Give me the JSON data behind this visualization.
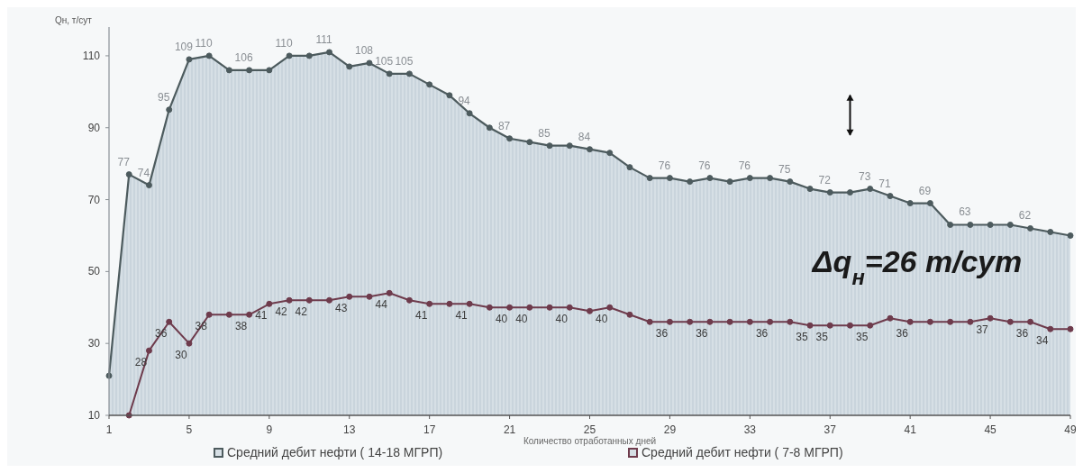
{
  "chart_data": {
    "type": "area",
    "ylabel": "Qн, т/сут",
    "xlabel": "Количество отработанных дней",
    "x": [
      1,
      2,
      3,
      4,
      5,
      6,
      7,
      8,
      9,
      10,
      11,
      12,
      13,
      14,
      15,
      16,
      17,
      18,
      19,
      20,
      21,
      22,
      23,
      24,
      25,
      26,
      27,
      28,
      29,
      30,
      31,
      32,
      33,
      34,
      35,
      36,
      37,
      38,
      39,
      40,
      41,
      42,
      43,
      44,
      45,
      46,
      47,
      48,
      49
    ],
    "xlim": [
      1,
      49
    ],
    "xticks": [
      1,
      5,
      9,
      13,
      17,
      21,
      25,
      29,
      33,
      37,
      41,
      45,
      49
    ],
    "ylim": [
      10,
      118
    ],
    "yticks": [
      10,
      30,
      50,
      70,
      90,
      110
    ],
    "marker": "circle",
    "legend": "bottom",
    "grid": false,
    "series": [
      {
        "name": "Средний дебит нефти ( 14-18 МГРП)",
        "color": "#4d5b5e",
        "values": [
          21,
          77,
          74,
          95,
          109,
          110,
          106,
          106,
          106,
          110,
          110,
          111,
          107,
          108,
          105,
          105,
          102,
          99,
          94,
          90,
          87,
          86,
          85,
          85,
          84,
          83,
          79,
          76,
          76,
          75,
          76,
          75,
          76,
          76,
          75,
          73,
          72,
          72,
          73,
          71,
          69,
          69,
          63,
          63,
          63,
          63,
          62,
          61,
          60
        ],
        "value_labels": [
          null,
          "77",
          "74",
          "95",
          "109",
          "110",
          null,
          "106",
          null,
          "110",
          null,
          "111",
          null,
          "108",
          "105",
          "105",
          null,
          null,
          "94",
          null,
          "87",
          null,
          "85",
          null,
          "84",
          null,
          null,
          null,
          "76",
          null,
          "76",
          null,
          "76",
          null,
          "75",
          null,
          "72",
          null,
          "73",
          "71",
          null,
          "69",
          null,
          "63",
          null,
          null,
          "62",
          null,
          null
        ]
      },
      {
        "name": "Средний дебит нефти ( 7-8 МГРП)",
        "type": "line",
        "color": "#6e3b4c",
        "values": [
          null,
          10,
          28,
          36,
          30,
          38,
          38,
          38,
          41,
          42,
          42,
          42,
          43,
          43,
          44,
          42,
          41,
          41,
          41,
          40,
          40,
          40,
          40,
          40,
          39,
          40,
          38,
          36,
          36,
          36,
          36,
          36,
          36,
          36,
          36,
          35,
          35,
          35,
          35,
          37,
          36,
          36,
          36,
          36,
          37,
          36,
          36,
          34,
          34
        ],
        "value_labels": [
          null,
          null,
          "28",
          "36",
          "30",
          "38",
          null,
          "38",
          "41",
          "42",
          "42",
          null,
          "43",
          null,
          "44",
          null,
          "41",
          null,
          "41",
          null,
          "40",
          "40",
          null,
          "40",
          null,
          "40",
          null,
          null,
          "36",
          null,
          "36",
          null,
          null,
          "36",
          null,
          "35",
          "35",
          null,
          "35",
          null,
          "36",
          null,
          null,
          null,
          "37",
          null,
          "36",
          "34",
          null
        ]
      }
    ],
    "annotations": [
      "Δq$_{н}$=26 т/сут"
    ]
  }
}
